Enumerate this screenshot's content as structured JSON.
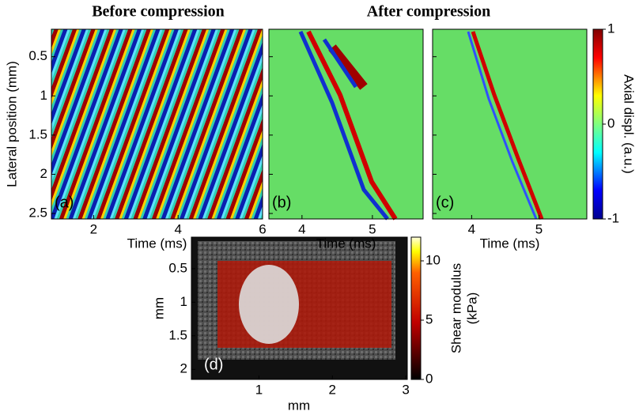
{
  "titles": [
    "Before compression",
    "After compression"
  ],
  "top_row": {
    "ylabel": "Lateral position (mm)",
    "ylim": [
      0.15,
      2.57
    ],
    "yticks": [
      0.5,
      1,
      1.5,
      2,
      2.5
    ],
    "panels": [
      {
        "label": "(a)",
        "xlabel": "Time (ms)",
        "xlim": [
          1,
          6
        ],
        "xticks": [
          2,
          4,
          6
        ]
      },
      {
        "label": "(b)",
        "xlabel": "Time (ms)",
        "xlim": [
          3.53,
          5.72
        ],
        "xticks": [
          4,
          5
        ]
      },
      {
        "label": "(c)",
        "xlabel": "Time (ms)",
        "xlim": [
          3.42,
          5.71
        ],
        "xticks": [
          4,
          5
        ]
      }
    ],
    "colorbar": {
      "label": "Axial displ. (a.u.)",
      "lim": [
        -1,
        1
      ],
      "ticks": [
        -1,
        0,
        1
      ]
    }
  },
  "bottom": {
    "label": "(d)",
    "xlabel": "mm",
    "ylabel": "mm",
    "xlim": [
      0.08,
      3.02
    ],
    "xticks": [
      1,
      2,
      3
    ],
    "ylim": [
      0.03,
      2.15
    ],
    "yticks": [
      0.5,
      1,
      1.5,
      2
    ],
    "colorbar": {
      "label_lines": [
        "Shear modulus",
        "(kPa)"
      ],
      "lim": [
        0,
        12
      ],
      "ticks": [
        0,
        5,
        10
      ]
    }
  }
}
